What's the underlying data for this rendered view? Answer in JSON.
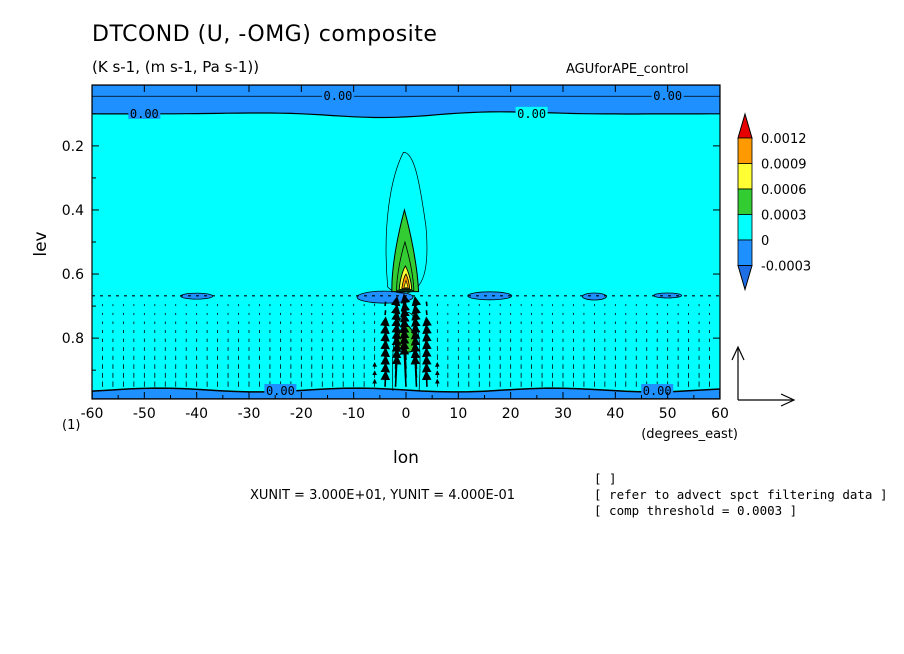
{
  "header": {
    "title": "DTCOND (U, -OMG) composite",
    "subtitle": "(K s-1, (m s-1, Pa s-1))",
    "dataset": "AGUforAPE_control"
  },
  "footer": {
    "unit_line": "XUNIT = 3.000E+01, YUNIT = 4.000E-01",
    "notes": [
      "[  ]",
      "[ refer to advect spct filtering data ]",
      "[ comp threshold = 0.0003 ]"
    ]
  },
  "chart_data": {
    "type": "heatmap",
    "title": "DTCOND (U, -OMG) composite",
    "subtitle": "(K s-1, (m s-1, Pa s-1))",
    "xlabel": "lon",
    "xunit": "(degrees_east)",
    "ylabel": "lev",
    "x_tick_prefix": "(1)",
    "xlim": [
      -60,
      60
    ],
    "ylim": [
      0.99,
      0.01
    ],
    "y_inverted": true,
    "x_ticks": [
      -60,
      -50,
      -40,
      -30,
      -20,
      -10,
      0,
      10,
      20,
      30,
      40,
      50,
      60
    ],
    "y_ticks": [
      0.2,
      0.4,
      0.6,
      0.8
    ],
    "x_tick_labels": [
      "-60",
      "-50",
      "-40",
      "-30",
      "-20",
      "-10",
      "0",
      "10",
      "20",
      "30",
      "40",
      "50",
      "60"
    ],
    "y_tick_labels": [
      "0.2",
      "0.4",
      "0.6",
      "0.8"
    ],
    "colorbar": {
      "labels": [
        "0.0012",
        "0.0009",
        "0.0006",
        "0.0003",
        "0",
        "-0.0003"
      ],
      "colors": [
        "#e60000",
        "#ff9900",
        "#ffff33",
        "#33cc33",
        "#00ffff",
        "#1e90ff",
        "#1e6fe6"
      ]
    },
    "contour_labels": [
      {
        "text": "0.00",
        "lon": -13,
        "lev": 0.045
      },
      {
        "text": "0.00",
        "lon": -50,
        "lev": 0.1
      },
      {
        "text": "0.00",
        "lon": 24,
        "lev": 0.1
      },
      {
        "text": "0.00",
        "lon": 50,
        "lev": 0.045
      },
      {
        "text": "0.00",
        "lon": -24,
        "lev": 0.965
      },
      {
        "text": "0.00",
        "lon": 48,
        "lev": 0.965
      }
    ],
    "regions": [
      {
        "name": "upper-negative-band",
        "value": -0.0003,
        "lev_range": [
          0.01,
          0.1
        ]
      },
      {
        "name": "lower-negative-band",
        "value": -0.0003,
        "lev_range": [
          0.96,
          0.99
        ]
      },
      {
        "name": "positive-tower",
        "value": 0.0003,
        "lon_range": [
          -5,
          5
        ],
        "lev_range": [
          0.4,
          0.66
        ]
      },
      {
        "name": "positive-core",
        "value": 0.0006,
        "lon_range": [
          -2,
          2
        ],
        "lev_range": [
          0.58,
          0.65
        ]
      },
      {
        "name": "lower-positive-cell",
        "value": 0.0003,
        "lon_range": [
          -1.5,
          2
        ],
        "lev_range": [
          0.76,
          0.83
        ]
      }
    ],
    "reference_vector": {
      "u": 30.0,
      "omg": 0.4
    }
  }
}
